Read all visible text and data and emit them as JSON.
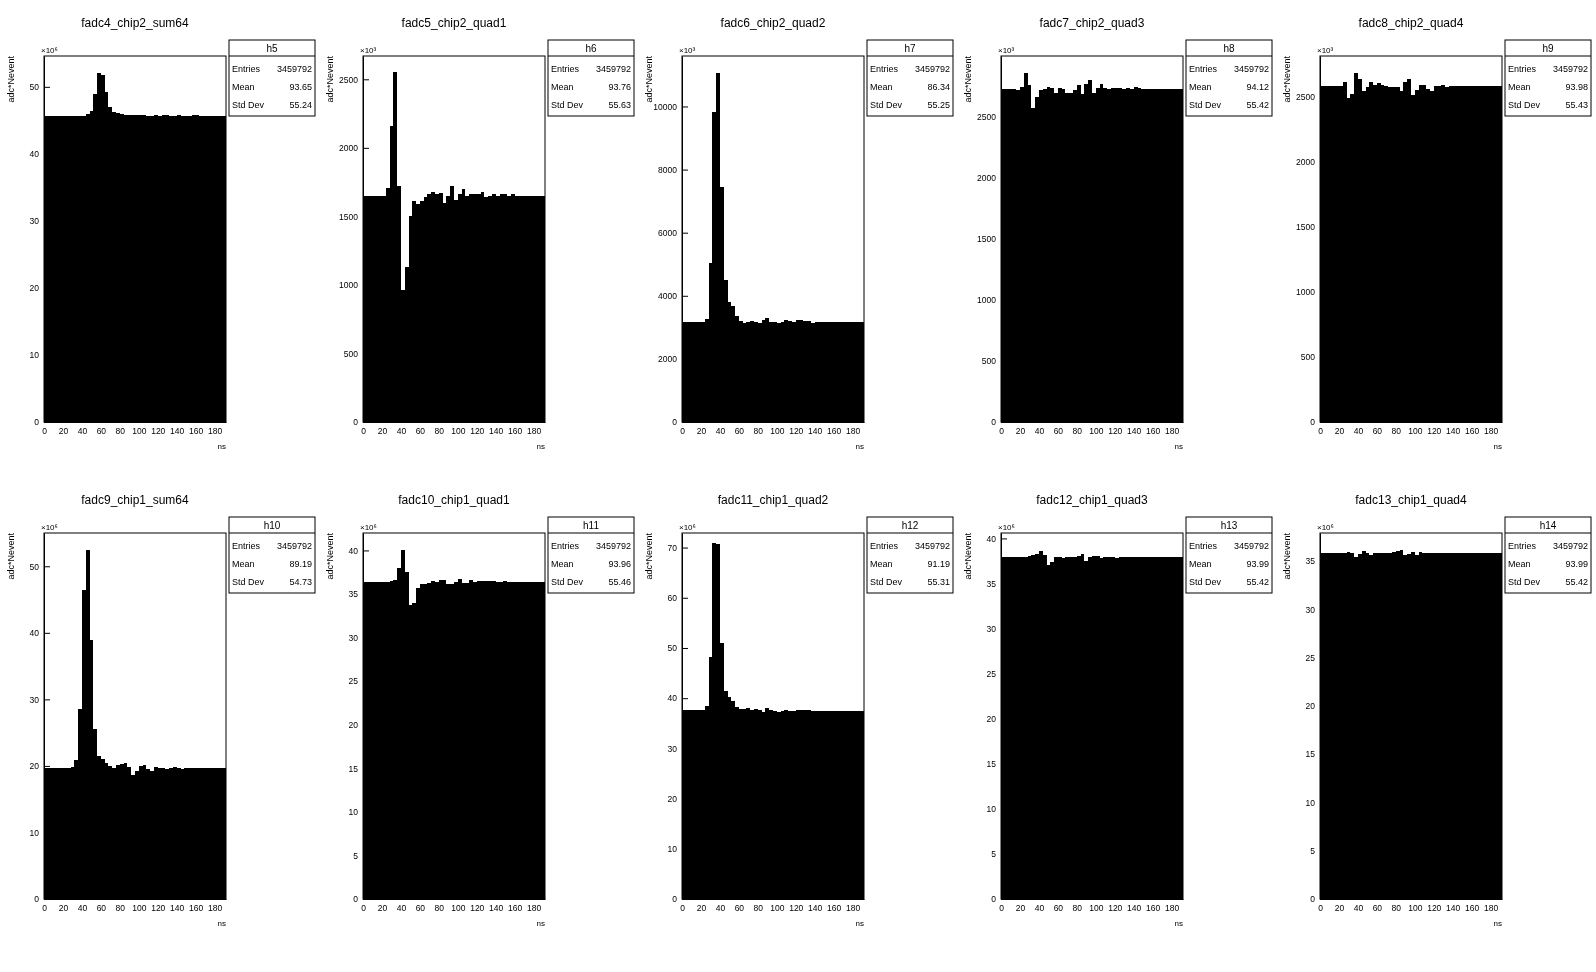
{
  "chart_data": [
    {
      "type": "histogram",
      "title": "fadc4_chip2_sum64",
      "xlabel": "ns",
      "ylabel": "adc*Nevent",
      "color": "#000000",
      "xlim": [
        0,
        192
      ],
      "ylim": [
        0,
        54.6
      ],
      "xticks": [
        0,
        20,
        40,
        60,
        80,
        100,
        120,
        140,
        160,
        180
      ],
      "yticks": [
        0,
        10,
        20,
        30,
        40,
        50
      ],
      "annotations": [
        "×10⁶",
        "h5",
        "Entries",
        "3459792",
        "Mean",
        "93.65",
        "Std Dev",
        "55.24"
      ],
      "bins": [
        0,
        4,
        8,
        12,
        16,
        20,
        24,
        28,
        32,
        36,
        40,
        44,
        48,
        52,
        56,
        60,
        64,
        68,
        72,
        76,
        80,
        84,
        88,
        92,
        96,
        100,
        104,
        108,
        112,
        116,
        120,
        124,
        128,
        132,
        136,
        140,
        144,
        148,
        152,
        156,
        160,
        164,
        168,
        172,
        176,
        180,
        184,
        188,
        192
      ],
      "values": [
        45.7,
        45.7,
        45.7,
        45.7,
        45.7,
        45.7,
        45.7,
        45.7,
        45.7,
        45.7,
        45.7,
        45.9,
        46.4,
        49.0,
        52.1,
        51.8,
        49.2,
        47.0,
        46.2,
        46.1,
        45.9,
        45.8,
        45.8,
        45.8,
        45.8,
        45.8,
        45.8,
        45.7,
        45.7,
        45.8,
        45.7,
        45.8,
        45.8,
        45.7,
        45.7,
        45.8,
        45.7,
        45.7,
        45.7,
        45.8,
        45.8,
        45.7,
        45.7,
        45.7,
        45.7,
        45.7,
        45.7,
        45.7
      ]
    },
    {
      "type": "histogram",
      "title": "fadc5_chip2_quad1",
      "xlabel": "ns",
      "ylabel": "adc*Nevent",
      "color": "#000000",
      "xlim": [
        0,
        192
      ],
      "ylim": [
        0,
        2670
      ],
      "xticks": [
        0,
        20,
        40,
        60,
        80,
        100,
        120,
        140,
        160,
        180
      ],
      "yticks": [
        0,
        500,
        1000,
        1500,
        2000,
        2500
      ],
      "annotations": [
        "×10³",
        "h6",
        "Entries",
        "3459792",
        "Mean",
        "93.76",
        "Std Dev",
        "55.63"
      ],
      "bins": [
        0,
        4,
        8,
        12,
        16,
        20,
        24,
        28,
        32,
        36,
        40,
        44,
        48,
        52,
        56,
        60,
        64,
        68,
        72,
        76,
        80,
        84,
        88,
        92,
        96,
        100,
        104,
        108,
        112,
        116,
        120,
        124,
        128,
        132,
        136,
        140,
        144,
        148,
        152,
        156,
        160,
        164,
        168,
        172,
        176,
        180,
        184,
        188,
        192
      ],
      "values": [
        1650,
        1650,
        1650,
        1650,
        1650,
        1650,
        1710,
        2160,
        2550,
        1720,
        960,
        1130,
        1500,
        1610,
        1590,
        1610,
        1640,
        1660,
        1680,
        1660,
        1670,
        1600,
        1650,
        1720,
        1620,
        1660,
        1700,
        1650,
        1660,
        1660,
        1660,
        1680,
        1640,
        1650,
        1660,
        1650,
        1660,
        1660,
        1650,
        1660,
        1650,
        1650,
        1650,
        1650,
        1650,
        1650,
        1650,
        1650
      ]
    },
    {
      "type": "histogram",
      "title": "fadc6_chip2_quad2",
      "xlabel": "ns",
      "ylabel": "adc*Nevent",
      "color": "#000000",
      "xlim": [
        0,
        192
      ],
      "ylim": [
        0,
        11600
      ],
      "xticks": [
        0,
        20,
        40,
        60,
        80,
        100,
        120,
        140,
        160,
        180
      ],
      "yticks": [
        0,
        2000,
        4000,
        6000,
        8000,
        10000
      ],
      "annotations": [
        "×10³",
        "h7",
        "Entries",
        "3459792",
        "Mean",
        "86.34",
        "Std Dev",
        "55.25"
      ],
      "bins": [
        0,
        4,
        8,
        12,
        16,
        20,
        24,
        28,
        32,
        36,
        40,
        44,
        48,
        52,
        56,
        60,
        64,
        68,
        72,
        76,
        80,
        84,
        88,
        92,
        96,
        100,
        104,
        108,
        112,
        116,
        120,
        124,
        128,
        132,
        136,
        140,
        144,
        148,
        152,
        156,
        160,
        164,
        168,
        172,
        176,
        180,
        184,
        188,
        192
      ],
      "values": [
        3180,
        3180,
        3180,
        3180,
        3180,
        3180,
        3280,
        5040,
        9820,
        11070,
        7450,
        4500,
        3790,
        3670,
        3370,
        3190,
        3130,
        3160,
        3190,
        3180,
        3150,
        3240,
        3300,
        3180,
        3180,
        3130,
        3180,
        3220,
        3200,
        3170,
        3230,
        3230,
        3190,
        3190,
        3150,
        3180,
        3180,
        3180,
        3180,
        3180,
        3180,
        3180,
        3180,
        3180,
        3180,
        3180,
        3180,
        3180
      ]
    },
    {
      "type": "histogram",
      "title": "fadc7_chip2_quad3",
      "xlabel": "ns",
      "ylabel": "adc*Nevent",
      "color": "#000000",
      "xlim": [
        0,
        192
      ],
      "ylim": [
        0,
        3000
      ],
      "xticks": [
        0,
        20,
        40,
        60,
        80,
        100,
        120,
        140,
        160,
        180
      ],
      "yticks": [
        0,
        500,
        1000,
        1500,
        2000,
        2500
      ],
      "annotations": [
        "×10³",
        "h8",
        "Entries",
        "3459792",
        "Mean",
        "94.12",
        "Std Dev",
        "55.42"
      ],
      "bins": [
        0,
        4,
        8,
        12,
        16,
        20,
        24,
        28,
        32,
        36,
        40,
        44,
        48,
        52,
        56,
        60,
        64,
        68,
        72,
        76,
        80,
        84,
        88,
        92,
        96,
        100,
        104,
        108,
        112,
        116,
        120,
        124,
        128,
        132,
        136,
        140,
        144,
        148,
        152,
        156,
        160,
        164,
        168,
        172,
        176,
        180,
        184,
        188,
        192
      ],
      "values": [
        2730,
        2730,
        2730,
        2730,
        2720,
        2750,
        2860,
        2760,
        2570,
        2660,
        2720,
        2730,
        2750,
        2740,
        2700,
        2740,
        2730,
        2700,
        2700,
        2720,
        2760,
        2690,
        2770,
        2800,
        2700,
        2740,
        2770,
        2740,
        2730,
        2740,
        2740,
        2740,
        2730,
        2740,
        2730,
        2750,
        2740,
        2730,
        2730,
        2730,
        2730,
        2730,
        2730,
        2730,
        2730,
        2730,
        2730,
        2730
      ]
    },
    {
      "type": "histogram",
      "title": "fadc8_chip2_quad4",
      "xlabel": "ns",
      "ylabel": "adc*Nevent",
      "color": "#000000",
      "xlim": [
        0,
        192
      ],
      "ylim": [
        0,
        2810
      ],
      "xticks": [
        0,
        20,
        40,
        60,
        80,
        100,
        120,
        140,
        160,
        180
      ],
      "yticks": [
        0,
        500,
        1000,
        1500,
        2000,
        2500
      ],
      "annotations": [
        "×10³",
        "h9",
        "Entries",
        "3459792",
        "Mean",
        "93.98",
        "Std Dev",
        "55.43"
      ],
      "bins": [
        0,
        4,
        8,
        12,
        16,
        20,
        24,
        28,
        32,
        36,
        40,
        44,
        48,
        52,
        56,
        60,
        64,
        68,
        72,
        76,
        80,
        84,
        88,
        92,
        96,
        100,
        104,
        108,
        112,
        116,
        120,
        124,
        128,
        132,
        136,
        140,
        144,
        148,
        152,
        156,
        160,
        164,
        168,
        172,
        176,
        180,
        184,
        188,
        192
      ],
      "values": [
        2580,
        2580,
        2580,
        2580,
        2580,
        2580,
        2610,
        2490,
        2520,
        2680,
        2630,
        2540,
        2570,
        2610,
        2590,
        2600,
        2590,
        2580,
        2570,
        2570,
        2570,
        2540,
        2610,
        2630,
        2510,
        2550,
        2590,
        2590,
        2560,
        2540,
        2580,
        2580,
        2590,
        2570,
        2580,
        2580,
        2580,
        2580,
        2580,
        2580,
        2580,
        2580,
        2580,
        2580,
        2580,
        2580,
        2580,
        2580
      ]
    },
    {
      "type": "histogram",
      "title": "fadc9_chip1_sum64",
      "xlabel": "ns",
      "ylabel": "adc*Nevent",
      "color": "#000000",
      "xlim": [
        0,
        192
      ],
      "ylim": [
        0,
        55
      ],
      "xticks": [
        0,
        20,
        40,
        60,
        80,
        100,
        120,
        140,
        160,
        180
      ],
      "yticks": [
        0,
        10,
        20,
        30,
        40,
        50
      ],
      "annotations": [
        "×10⁶",
        "h10",
        "Entries",
        "3459792",
        "Mean",
        "89.19",
        "Std Dev",
        "54.73"
      ],
      "bins": [
        0,
        4,
        8,
        12,
        16,
        20,
        24,
        28,
        32,
        36,
        40,
        44,
        48,
        52,
        56,
        60,
        64,
        68,
        72,
        76,
        80,
        84,
        88,
        92,
        96,
        100,
        104,
        108,
        112,
        116,
        120,
        124,
        128,
        132,
        136,
        140,
        144,
        148,
        152,
        156,
        160,
        164,
        168,
        172,
        176,
        180,
        184,
        188,
        192
      ],
      "values": [
        19.7,
        19.7,
        19.7,
        19.7,
        19.7,
        19.7,
        19.7,
        19.8,
        20.9,
        28.6,
        46.4,
        52.5,
        38.9,
        25.6,
        21.5,
        21.0,
        20.5,
        20.0,
        19.7,
        20.2,
        20.3,
        20.5,
        19.8,
        18.6,
        19.3,
        20.0,
        20.1,
        19.5,
        19.3,
        19.8,
        19.7,
        19.7,
        19.6,
        19.7,
        19.8,
        19.7,
        19.6,
        19.7,
        19.7,
        19.7,
        19.7,
        19.7,
        19.7,
        19.7,
        19.7,
        19.7,
        19.7,
        19.7
      ]
    },
    {
      "type": "histogram",
      "title": "fadc10_chip1_quad1",
      "xlabel": "ns",
      "ylabel": "adc*Nevent",
      "color": "#000000",
      "xlim": [
        0,
        192
      ],
      "ylim": [
        0,
        42
      ],
      "xticks": [
        0,
        20,
        40,
        60,
        80,
        100,
        120,
        140,
        160,
        180
      ],
      "yticks": [
        0,
        5,
        10,
        15,
        20,
        25,
        30,
        35,
        40
      ],
      "annotations": [
        "×10⁶",
        "h11",
        "Entries",
        "3459792",
        "Mean",
        "93.96",
        "Std Dev",
        "55.46"
      ],
      "bins": [
        0,
        4,
        8,
        12,
        16,
        20,
        24,
        28,
        32,
        36,
        40,
        44,
        48,
        52,
        56,
        60,
        64,
        68,
        72,
        76,
        80,
        84,
        88,
        92,
        96,
        100,
        104,
        108,
        112,
        116,
        120,
        124,
        128,
        132,
        136,
        140,
        144,
        148,
        152,
        156,
        160,
        164,
        168,
        172,
        176,
        180,
        184,
        188,
        192
      ],
      "values": [
        36.4,
        36.4,
        36.4,
        36.4,
        36.4,
        36.4,
        36.4,
        36.5,
        36.6,
        38.0,
        40.1,
        37.5,
        33.7,
        34.0,
        35.7,
        36.2,
        36.1,
        36.3,
        36.5,
        36.4,
        36.6,
        36.6,
        36.2,
        36.2,
        36.4,
        36.7,
        36.3,
        36.3,
        36.6,
        36.4,
        36.5,
        36.5,
        36.5,
        36.5,
        36.5,
        36.4,
        36.4,
        36.5,
        36.4,
        36.4,
        36.4,
        36.4,
        36.4,
        36.4,
        36.4,
        36.4,
        36.4,
        36.4
      ]
    },
    {
      "type": "histogram",
      "title": "fadc11_chip1_quad2",
      "xlabel": "ns",
      "ylabel": "adc*Nevent",
      "color": "#000000",
      "xlim": [
        0,
        192
      ],
      "ylim": [
        0,
        72.9
      ],
      "xticks": [
        0,
        20,
        40,
        60,
        80,
        100,
        120,
        140,
        160,
        180
      ],
      "yticks": [
        0,
        10,
        20,
        30,
        40,
        50,
        60,
        70
      ],
      "annotations": [
        "×10⁶",
        "h12",
        "Entries",
        "3459792",
        "Mean",
        "91.19",
        "Std Dev",
        "55.31"
      ],
      "bins": [
        0,
        4,
        8,
        12,
        16,
        20,
        24,
        28,
        32,
        36,
        40,
        44,
        48,
        52,
        56,
        60,
        64,
        68,
        72,
        76,
        80,
        84,
        88,
        92,
        96,
        100,
        104,
        108,
        112,
        116,
        120,
        124,
        128,
        132,
        136,
        140,
        144,
        148,
        152,
        156,
        160,
        164,
        168,
        172,
        176,
        180,
        184,
        188,
        192
      ],
      "values": [
        37.7,
        37.7,
        37.7,
        37.7,
        37.7,
        37.7,
        38.5,
        48.3,
        71.0,
        70.7,
        51.0,
        41.5,
        40.3,
        39.4,
        38.3,
        37.8,
        37.9,
        38.1,
        37.6,
        37.9,
        37.6,
        37.2,
        38.1,
        37.7,
        37.5,
        37.3,
        37.5,
        37.7,
        37.5,
        37.5,
        37.7,
        37.7,
        37.7,
        37.7,
        37.5,
        37.5,
        37.5,
        37.5,
        37.5,
        37.5,
        37.5,
        37.5,
        37.5,
        37.5,
        37.5,
        37.5,
        37.5,
        37.5
      ]
    },
    {
      "type": "histogram",
      "title": "fadc12_chip1_quad3",
      "xlabel": "ns",
      "ylabel": "adc*Nevent",
      "color": "#000000",
      "xlim": [
        0,
        192
      ],
      "ylim": [
        0,
        40.6
      ],
      "xticks": [
        0,
        20,
        40,
        60,
        80,
        100,
        120,
        140,
        160,
        180
      ],
      "yticks": [
        0,
        5,
        10,
        15,
        20,
        25,
        30,
        35,
        40
      ],
      "annotations": [
        "×10⁶",
        "h13",
        "Entries",
        "3459792",
        "Mean",
        "93.99",
        "Std Dev",
        "55.42"
      ],
      "bins": [
        0,
        4,
        8,
        12,
        16,
        20,
        24,
        28,
        32,
        36,
        40,
        44,
        48,
        52,
        56,
        60,
        64,
        68,
        72,
        76,
        80,
        84,
        88,
        92,
        96,
        100,
        104,
        108,
        112,
        116,
        120,
        124,
        128,
        132,
        136,
        140,
        144,
        148,
        152,
        156,
        160,
        164,
        168,
        172,
        176,
        180,
        184,
        188,
        192
      ],
      "values": [
        37.9,
        37.9,
        37.9,
        37.9,
        37.9,
        37.9,
        37.9,
        38.0,
        38.2,
        38.3,
        38.6,
        38.2,
        37.0,
        37.4,
        37.9,
        37.9,
        37.8,
        37.9,
        37.9,
        37.9,
        38.1,
        38.3,
        37.5,
        37.9,
        38.0,
        38.0,
        37.8,
        37.9,
        37.9,
        37.9,
        37.8,
        37.9,
        37.9,
        37.9,
        37.9,
        37.9,
        37.9,
        37.9,
        37.9,
        37.9,
        37.9,
        37.9,
        37.9,
        37.9,
        37.9,
        37.9,
        37.9,
        37.9
      ]
    },
    {
      "type": "histogram",
      "title": "fadc13_chip1_quad4",
      "xlabel": "ns",
      "ylabel": "adc*Nevent",
      "color": "#000000",
      "xlim": [
        0,
        192
      ],
      "ylim": [
        0,
        37.9
      ],
      "xticks": [
        0,
        20,
        40,
        60,
        80,
        100,
        120,
        140,
        160,
        180
      ],
      "yticks": [
        0,
        5,
        10,
        15,
        20,
        25,
        30,
        35
      ],
      "annotations": [
        "×10⁶",
        "h14",
        "Entries",
        "3459792",
        "Mean",
        "93.99",
        "Std Dev",
        "55.42"
      ],
      "bins": [
        0,
        4,
        8,
        12,
        16,
        20,
        24,
        28,
        32,
        36,
        40,
        44,
        48,
        52,
        56,
        60,
        64,
        68,
        72,
        76,
        80,
        84,
        88,
        92,
        96,
        100,
        104,
        108,
        112,
        116,
        120,
        124,
        128,
        132,
        136,
        140,
        144,
        148,
        152,
        156,
        160,
        164,
        168,
        172,
        176,
        180,
        184,
        188,
        192
      ],
      "values": [
        35.8,
        35.8,
        35.8,
        35.8,
        35.8,
        35.8,
        35.8,
        35.9,
        35.8,
        35.4,
        35.7,
        36.0,
        35.8,
        35.6,
        35.8,
        35.8,
        35.8,
        35.8,
        35.8,
        35.9,
        36.0,
        36.1,
        35.6,
        35.7,
        35.9,
        35.6,
        35.9,
        35.8,
        35.8,
        35.8,
        35.8,
        35.8,
        35.8,
        35.8,
        35.8,
        35.8,
        35.8,
        35.8,
        35.8,
        35.8,
        35.8,
        35.8,
        35.8,
        35.8,
        35.8,
        35.8,
        35.8,
        35.8
      ]
    }
  ]
}
